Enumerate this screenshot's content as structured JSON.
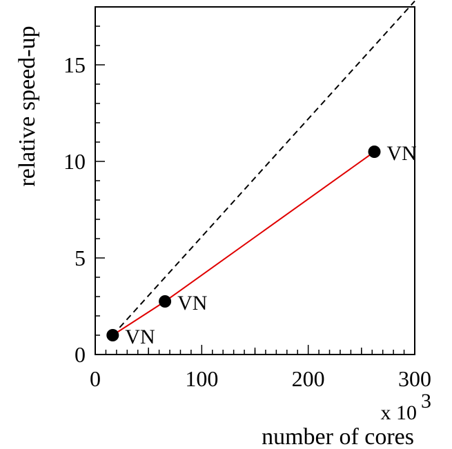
{
  "chart_data": {
    "type": "line",
    "title": "",
    "xlabel": "number of cores",
    "ylabel": "relative speed-up",
    "x_multiplier_text": "x 10",
    "x_multiplier_exponent": "3",
    "xlim": [
      0,
      300
    ],
    "ylim": [
      0,
      18
    ],
    "x_ticks": [
      0,
      100,
      200,
      300
    ],
    "x_tick_labels": [
      "0",
      "100",
      "200",
      "300"
    ],
    "y_ticks": [
      0,
      5,
      10,
      15
    ],
    "y_tick_labels": [
      "0",
      "5",
      "10",
      "15"
    ],
    "grid": false,
    "series": [
      {
        "values": [
          {
            "x": 16.4,
            "y": 1.0,
            "label": "VN"
          },
          {
            "x": 65.5,
            "y": 2.75,
            "label": "VN"
          },
          {
            "x": 262.1,
            "y": 10.5,
            "label": "VN"
          }
        ],
        "color": "#e00000",
        "marker": "filled-circle",
        "marker_color": "#000000"
      }
    ],
    "reference_line": {
      "x": [
        16.4,
        300
      ],
      "y": [
        1.0,
        18.3
      ],
      "style": "dashed",
      "color": "#000000"
    }
  }
}
